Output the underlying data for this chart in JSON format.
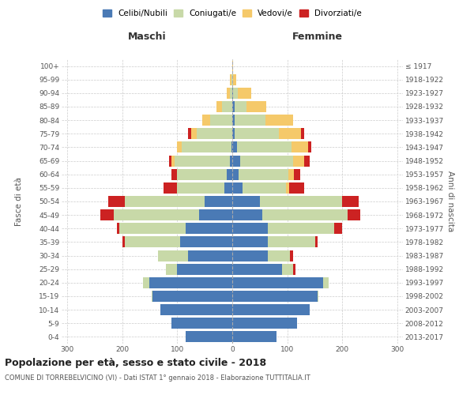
{
  "age_groups": [
    "0-4",
    "5-9",
    "10-14",
    "15-19",
    "20-24",
    "25-29",
    "30-34",
    "35-39",
    "40-44",
    "45-49",
    "50-54",
    "55-59",
    "60-64",
    "65-69",
    "70-74",
    "75-79",
    "80-84",
    "85-89",
    "90-94",
    "95-99",
    "100+"
  ],
  "birth_years": [
    "2013-2017",
    "2008-2012",
    "2003-2007",
    "1998-2002",
    "1993-1997",
    "1988-1992",
    "1983-1987",
    "1978-1982",
    "1973-1977",
    "1968-1972",
    "1963-1967",
    "1958-1962",
    "1953-1957",
    "1948-1952",
    "1943-1947",
    "1938-1942",
    "1933-1937",
    "1928-1932",
    "1923-1927",
    "1918-1922",
    "≤ 1917"
  ],
  "male_celibi": [
    85,
    110,
    130,
    145,
    150,
    100,
    80,
    95,
    85,
    60,
    50,
    15,
    10,
    5,
    2,
    0,
    0,
    0,
    0,
    0,
    0
  ],
  "male_coniugati": [
    0,
    0,
    0,
    2,
    12,
    20,
    55,
    100,
    120,
    155,
    145,
    85,
    90,
    100,
    90,
    65,
    40,
    18,
    5,
    2,
    0
  ],
  "male_vedovi": [
    0,
    0,
    0,
    0,
    0,
    0,
    0,
    0,
    0,
    0,
    0,
    0,
    0,
    5,
    8,
    10,
    15,
    10,
    5,
    2,
    0
  ],
  "male_divorziati": [
    0,
    0,
    0,
    0,
    0,
    0,
    0,
    5,
    5,
    25,
    30,
    25,
    10,
    5,
    0,
    5,
    0,
    0,
    0,
    0,
    0
  ],
  "female_celibi": [
    80,
    118,
    140,
    155,
    165,
    90,
    65,
    65,
    65,
    55,
    50,
    18,
    12,
    15,
    8,
    5,
    5,
    4,
    2,
    0,
    0
  ],
  "female_coniugati": [
    0,
    0,
    0,
    2,
    10,
    20,
    40,
    85,
    120,
    155,
    150,
    80,
    90,
    95,
    100,
    80,
    55,
    22,
    8,
    2,
    0
  ],
  "female_vedovi": [
    0,
    0,
    0,
    0,
    0,
    0,
    0,
    0,
    0,
    0,
    0,
    5,
    10,
    20,
    30,
    40,
    50,
    35,
    25,
    5,
    2
  ],
  "female_divorziati": [
    0,
    0,
    0,
    0,
    0,
    5,
    5,
    5,
    15,
    22,
    30,
    28,
    12,
    10,
    5,
    5,
    0,
    0,
    0,
    0,
    0
  ],
  "color_celibi": "#4a7ab5",
  "color_coniugati": "#c8d9a8",
  "color_vedovi": "#f5c96a",
  "color_divorziati": "#cc2222",
  "title_main": "Popolazione per età, sesso e stato civile - 2018",
  "title_sub": "COMUNE DI TORREBELVICINO (VI) - Dati ISTAT 1° gennaio 2018 - Elaborazione TUTTITALIA.IT",
  "xlabel_left": "Maschi",
  "xlabel_right": "Femmine",
  "ylabel_left": "Fasce di età",
  "ylabel_right": "Anni di nascita",
  "xlim": 310,
  "bar_height": 0.82,
  "bg_color": "#ffffff",
  "grid_color": "#cccccc",
  "legend_labels": [
    "Celibi/Nubili",
    "Coniugati/e",
    "Vedovi/e",
    "Divorziati/e"
  ]
}
